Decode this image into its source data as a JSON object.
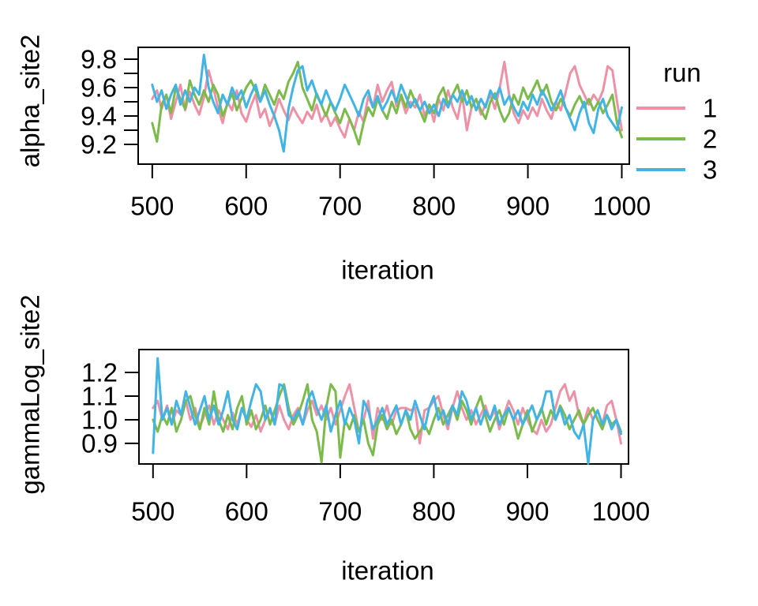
{
  "legend": {
    "title": "run",
    "entries": [
      {
        "label": "1",
        "color": "#ED92A6"
      },
      {
        "label": "2",
        "color": "#7CBA4B"
      },
      {
        "label": "3",
        "color": "#41B4E4"
      }
    ]
  },
  "chart_data": [
    {
      "type": "line",
      "title": "",
      "ylabel": "alpha_site2",
      "xlabel": "iteration",
      "xlim": [
        485,
        1008
      ],
      "ylim": [
        9.061,
        9.883
      ],
      "x_ticks": [
        500,
        600,
        700,
        800,
        900,
        1000
      ],
      "x_tick_labels": [
        "500",
        "600",
        "700",
        "800",
        "900",
        "1000"
      ],
      "y_ticks": [
        9.2,
        9.3,
        9.4,
        9.5,
        9.6,
        9.7,
        9.8
      ],
      "y_tick_labels": [
        "9.2",
        "",
        "9.4",
        "",
        "9.6",
        "",
        "9.8"
      ],
      "x_start": 500,
      "x_step": 5,
      "grid": false,
      "legend_position": "right",
      "series": [
        {
          "name": "1",
          "color": "#ED92A6",
          "values": [
            9.52,
            9.58,
            9.45,
            9.55,
            9.38,
            9.5,
            9.62,
            9.44,
            9.57,
            9.48,
            9.41,
            9.53,
            9.72,
            9.6,
            9.46,
            9.35,
            9.5,
            9.44,
            9.58,
            9.42,
            9.36,
            9.47,
            9.55,
            9.39,
            9.45,
            9.33,
            9.41,
            9.52,
            9.44,
            9.37,
            9.46,
            9.4,
            9.35,
            9.43,
            9.38,
            9.48,
            9.36,
            9.42,
            9.33,
            9.39,
            9.31,
            9.25,
            9.38,
            9.3,
            9.43,
            9.36,
            9.54,
            9.46,
            9.62,
            9.5,
            9.58,
            9.64,
            9.47,
            9.53,
            9.42,
            9.5,
            9.46,
            9.55,
            9.4,
            9.48,
            9.36,
            9.52,
            9.44,
            9.58,
            9.46,
            9.38,
            9.55,
            9.3,
            9.46,
            9.52,
            9.41,
            9.48,
            9.55,
            9.45,
            9.6,
            9.78,
            9.55,
            9.42,
            9.35,
            9.44,
            9.38,
            9.46,
            9.4,
            9.52,
            9.44,
            9.38,
            9.5,
            9.44,
            9.56,
            9.7,
            9.75,
            9.62,
            9.55,
            9.48,
            9.55,
            9.5,
            9.58,
            9.75,
            9.72,
            9.5,
            9.3
          ]
        },
        {
          "name": "2",
          "color": "#7CBA4B",
          "values": [
            9.35,
            9.22,
            9.48,
            9.55,
            9.42,
            9.6,
            9.52,
            9.45,
            9.65,
            9.55,
            9.48,
            9.58,
            9.5,
            9.62,
            9.55,
            9.4,
            9.48,
            9.56,
            9.44,
            9.52,
            9.6,
            9.65,
            9.58,
            9.5,
            9.62,
            9.55,
            9.48,
            9.58,
            9.52,
            9.64,
            9.7,
            9.78,
            9.6,
            9.52,
            9.44,
            9.56,
            9.48,
            9.4,
            9.5,
            9.42,
            9.35,
            9.45,
            9.38,
            9.3,
            9.2,
            9.35,
            9.46,
            9.4,
            9.52,
            9.44,
            9.38,
            9.5,
            9.42,
            9.55,
            9.46,
            9.58,
            9.5,
            9.44,
            9.36,
            9.48,
            9.42,
            9.54,
            9.6,
            9.48,
            9.55,
            9.62,
            9.5,
            9.58,
            9.46,
            9.52,
            9.44,
            9.38,
            9.5,
            9.56,
            9.44,
            9.36,
            9.42,
            9.55,
            9.48,
            9.6,
            9.52,
            9.58,
            9.65,
            9.55,
            9.62,
            9.5,
            9.44,
            9.52,
            9.46,
            9.4,
            9.48,
            9.54,
            9.46,
            9.52,
            9.44,
            9.5,
            9.42,
            9.48,
            9.55,
            9.35,
            9.25
          ]
        },
        {
          "name": "3",
          "color": "#41B4E4",
          "values": [
            9.62,
            9.5,
            9.58,
            9.45,
            9.55,
            9.62,
            9.48,
            9.58,
            9.5,
            9.6,
            9.55,
            9.83,
            9.6,
            9.5,
            9.42,
            9.55,
            9.48,
            9.6,
            9.52,
            9.58,
            9.46,
            9.55,
            9.62,
            9.5,
            9.58,
            9.48,
            9.4,
            9.3,
            9.15,
            9.45,
            9.6,
            9.72,
            9.75,
            9.58,
            9.65,
            9.55,
            9.48,
            9.58,
            9.5,
            9.44,
            9.52,
            9.62,
            9.55,
            9.48,
            9.4,
            9.52,
            9.58,
            9.46,
            9.54,
            9.44,
            9.5,
            9.58,
            9.5,
            9.62,
            9.54,
            9.46,
            9.52,
            9.44,
            9.5,
            9.42,
            9.48,
            9.4,
            9.52,
            9.46,
            9.55,
            9.5,
            9.58,
            9.48,
            9.54,
            9.44,
            9.52,
            9.46,
            9.58,
            9.52,
            9.6,
            9.48,
            9.54,
            9.46,
            9.4,
            9.5,
            9.44,
            9.55,
            9.48,
            9.58,
            9.52,
            9.44,
            9.5,
            9.58,
            9.46,
            9.38,
            9.3,
            9.42,
            9.5,
            9.35,
            9.28,
            9.45,
            9.52,
            9.4,
            9.35,
            9.3,
            9.46
          ]
        }
      ]
    },
    {
      "type": "line",
      "title": "",
      "ylabel": "gammaLog_site2",
      "xlabel": "iteration",
      "xlim": [
        485,
        1008
      ],
      "ylim": [
        0.813,
        1.297
      ],
      "x_ticks": [
        500,
        600,
        700,
        800,
        900,
        1000
      ],
      "x_tick_labels": [
        "500",
        "600",
        "700",
        "800",
        "900",
        "1000"
      ],
      "y_ticks": [
        0.9,
        1.0,
        1.1,
        1.2
      ],
      "y_tick_labels": [
        "0.9",
        "1.0",
        "1.1",
        "1.2"
      ],
      "x_start": 500,
      "x_step": 5,
      "grid": false,
      "legend_position": "none",
      "series": [
        {
          "name": "1",
          "color": "#ED92A6",
          "values": [
            1.05,
            1.08,
            1.0,
            1.06,
            0.98,
            1.04,
            1.02,
            1.08,
            1.0,
            1.05,
            0.97,
            1.02,
            1.06,
            0.98,
            1.04,
            1.0,
            0.96,
            1.03,
            0.98,
            1.05,
            1.0,
            0.97,
            1.02,
            0.95,
            1.0,
            1.04,
            0.98,
            1.06,
            1.0,
            0.96,
            1.02,
            1.05,
            0.98,
            1.04,
            1.08,
            1.02,
            1.06,
            1.0,
            1.05,
            0.98,
            1.04,
            1.1,
            1.15,
            1.05,
            0.95,
            1.0,
            1.08,
            0.92,
            1.05,
            1.0,
            1.06,
            0.98,
            1.04,
            1.05,
            1.05,
            1.04,
            1.05,
            0.9,
            1.04,
            1.05,
            1.08,
            1.1,
            1.02,
            0.96,
            1.05,
            1.12,
            1.05,
            1.0,
            1.04,
            0.98,
            1.02,
            1.06,
            1.0,
            1.04,
            0.96,
            1.02,
            1.08,
            1.04,
            0.98,
            1.05,
            1.0,
            0.96,
            0.94,
            1.0,
            0.95,
            0.98,
            1.05,
            1.12,
            1.15,
            1.08,
            1.12,
            1.02,
            0.98,
            1.05,
            1.0,
            1.04,
            0.98,
            1.06,
            1.08,
            1.0,
            0.9
          ]
        },
        {
          "name": "2",
          "color": "#7CBA4B",
          "values": [
            1.0,
            0.95,
            1.02,
            0.98,
            1.05,
            0.95,
            1.0,
            1.08,
            1.1,
            1.02,
            0.96,
            1.05,
            0.98,
            1.12,
            1.0,
            0.95,
            1.02,
            0.96,
            1.05,
            1.1,
            0.98,
            1.04,
            0.96,
            1.0,
            1.06,
            0.98,
            1.04,
            1.1,
            1.15,
            1.05,
            0.98,
            1.02,
            1.08,
            1.15,
            1.0,
            0.95,
            0.82,
            1.05,
            1.15,
            1.12,
            0.84,
            1.0,
            0.96,
            1.02,
            0.95,
            1.0,
            0.9,
            0.85,
            0.98,
            1.02,
            0.96,
            1.0,
            0.94,
            0.98,
            1.04,
            0.96,
            0.92,
            0.95,
            0.98,
            0.94,
            1.0,
            1.05,
            0.98,
            1.02,
            1.06,
            1.0,
            1.08,
            1.04,
            0.98,
            1.05,
            1.1,
            1.02,
            0.95,
            1.0,
            1.04,
            0.98,
            1.05,
            1.0,
            0.92,
            0.98,
            1.04,
            0.95,
            1.0,
            1.05,
            0.98,
            1.04,
            1.0,
            1.06,
            1.02,
            0.96,
            1.0,
            1.04,
            0.98,
            1.02,
            1.05,
            1.0,
            0.96,
            1.02,
            0.98,
            1.0,
            0.95
          ]
        },
        {
          "name": "3",
          "color": "#41B4E4",
          "values": [
            0.86,
            1.26,
            1.0,
            1.05,
            0.98,
            1.08,
            1.02,
            1.12,
            1.05,
            0.98,
            1.04,
            1.1,
            1.0,
            1.06,
            0.98,
            1.04,
            1.12,
            1.0,
            0.96,
            1.05,
            1.0,
            1.08,
            1.15,
            1.12,
            1.0,
            1.05,
            0.98,
            1.15,
            1.14,
            1.02,
            1.0,
            1.04,
            0.98,
            1.08,
            1.12,
            1.05,
            1.0,
            1.06,
            0.95,
            1.02,
            1.08,
            0.98,
            1.05,
            1.0,
            0.9,
            1.08,
            1.04,
            0.96,
            1.0,
            1.05,
            0.98,
            1.02,
            1.06,
            0.98,
            1.04,
            1.0,
            1.08,
            1.02,
            0.96,
            1.05,
            1.1,
            1.0,
            1.04,
            0.98,
            1.06,
            1.02,
            1.12,
            1.08,
            1.0,
            1.05,
            0.98,
            1.04,
            1.0,
            1.06,
            0.98,
            1.02,
            1.05,
            1.0,
            1.04,
            0.98,
            1.02,
            1.06,
            1.0,
            1.04,
            1.12,
            1.12,
            1.0,
            1.05,
            0.98,
            1.02,
            0.95,
            0.92,
            0.98,
            0.815,
            1.0,
            1.04,
            0.98,
            1.02,
            0.96,
            1.0,
            0.94
          ]
        }
      ]
    }
  ]
}
